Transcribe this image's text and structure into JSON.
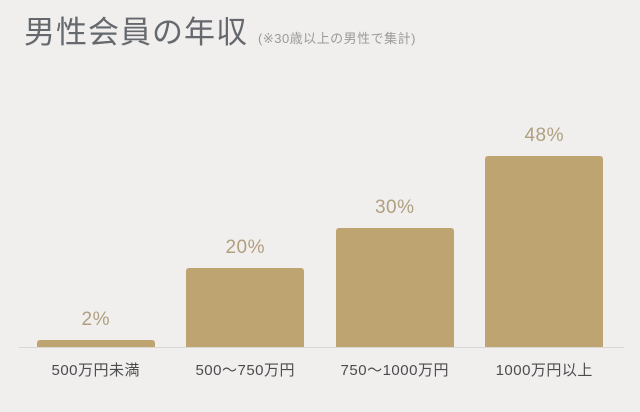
{
  "header": {
    "title": "男性会員の年収",
    "subtitle": "(※30歳以上の男性で集計)"
  },
  "chart_data": {
    "type": "bar",
    "title": "男性会員の年収",
    "subtitle": "(※30歳以上の男性で集計)",
    "categories": [
      "500万円未満",
      "500～750万円",
      "750～1000万円",
      "1000万円以上"
    ],
    "values": [
      2,
      20,
      30,
      48
    ],
    "value_labels": [
      "2%",
      "20%",
      "30%",
      "48%"
    ],
    "xlabel": "",
    "ylabel": "",
    "ylim": [
      0,
      50
    ],
    "grid": false,
    "legend": false,
    "colors": {
      "bar": "#bea471",
      "value_label": "#b09f80",
      "category_label": "#4c4c4e",
      "axis_line": "#d8d7d4",
      "background": "#f0efee",
      "title": "#65686d",
      "subtitle": "#9a9a9a"
    }
  }
}
